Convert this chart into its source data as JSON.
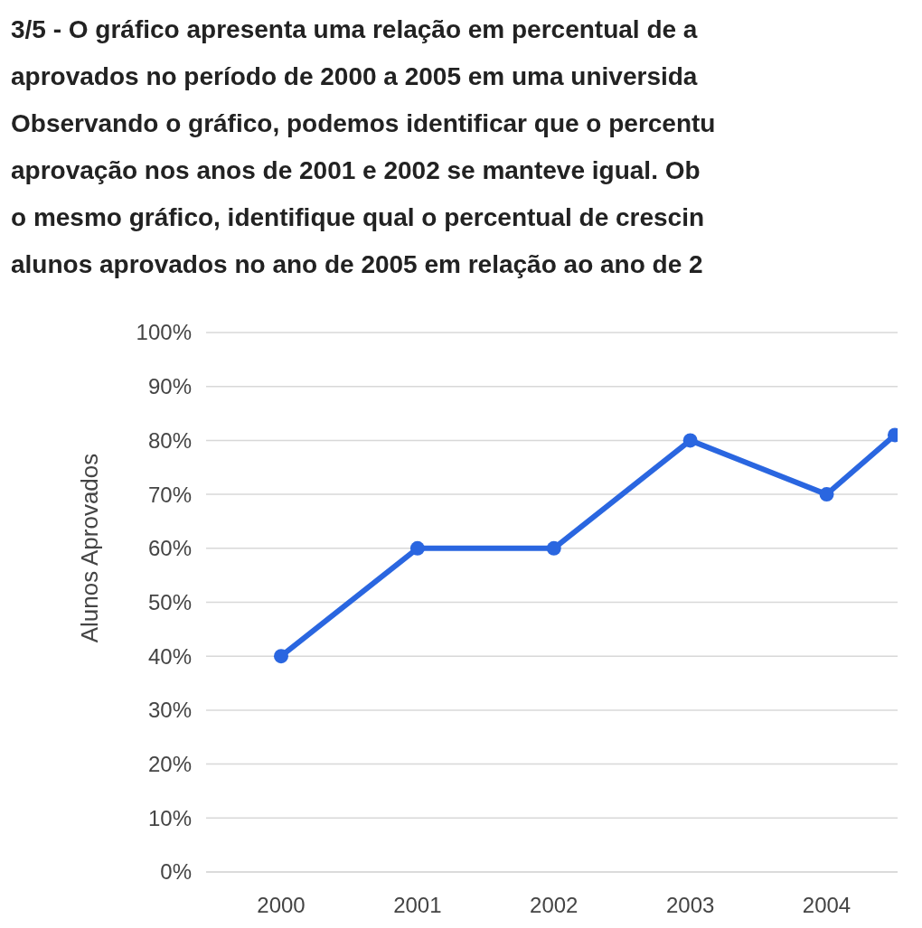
{
  "chart_data": {
    "type": "line",
    "title": "3/5 - O gráfico apresenta uma relação em percentual de a\naprovados no período de 2000 a 2005 em uma universida\nObservando o gráfico, podemos identificar que o percentu\naprovação nos anos de 2001 e 2002 se manteve igual. Ob\no mesmo gráfico, identifique qual o percentual de crescin\nalunos aprovados no ano de 2005 em relação ao ano de 2",
    "ylabel": "Alunos Aprovados",
    "x": [
      2000,
      2001,
      2002,
      2003,
      2004,
      2004.5
    ],
    "series": [
      {
        "color": "#2a66e0",
        "values": [
          40,
          60,
          60,
          80,
          70,
          81
        ]
      }
    ],
    "xlim": [
      1999.45,
      2004.52
    ],
    "xticks": [
      {
        "value": 2000,
        "label": "2000"
      },
      {
        "value": 2001,
        "label": "2001"
      },
      {
        "value": 2002,
        "label": "2002"
      },
      {
        "value": 2003,
        "label": "2003"
      },
      {
        "value": 2004,
        "label": "2004"
      }
    ],
    "ylim": [
      0,
      100
    ],
    "yticks": [
      {
        "value": 0,
        "label": "0%"
      },
      {
        "value": 10,
        "label": "10%"
      },
      {
        "value": 20,
        "label": "20%"
      },
      {
        "value": 30,
        "label": "30%"
      },
      {
        "value": 40,
        "label": "40%"
      },
      {
        "value": 50,
        "label": "50%"
      },
      {
        "value": 60,
        "label": "60%"
      },
      {
        "value": 70,
        "label": "70%"
      },
      {
        "value": 80,
        "label": "80%"
      },
      {
        "value": 90,
        "label": "90%"
      },
      {
        "value": 100,
        "label": "100%"
      }
    ],
    "grid": "y",
    "marker": "circle",
    "line_style": "solid"
  }
}
